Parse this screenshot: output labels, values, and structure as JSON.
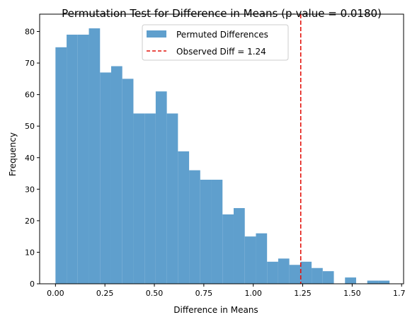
{
  "chart_data": {
    "type": "histogram",
    "title": "Permutation Test for Difference in Means (p-value = 0.0180)",
    "xlabel": "Difference in Means",
    "ylabel": "Frequency",
    "xlim": [
      -0.08,
      1.76
    ],
    "ylim": [
      0,
      85.5
    ],
    "x_ticks": [
      0.0,
      0.25,
      0.5,
      0.75,
      1.0,
      1.25,
      1.5,
      1.75
    ],
    "x_tick_labels": [
      "0.00",
      "0.25",
      "0.50",
      "0.75",
      "1.00",
      "1.25",
      "1.50",
      "1.75"
    ],
    "y_ticks": [
      0,
      10,
      20,
      30,
      40,
      50,
      60,
      70,
      80
    ],
    "y_tick_labels": [
      "0",
      "10",
      "20",
      "30",
      "40",
      "50",
      "60",
      "70",
      "80"
    ],
    "bin_start": 0.0,
    "bin_width": 0.0563,
    "counts": [
      75,
      79,
      79,
      81,
      67,
      69,
      65,
      54,
      54,
      61,
      54,
      42,
      36,
      33,
      33,
      22,
      24,
      15,
      16,
      7,
      8,
      6,
      7,
      5,
      4,
      0,
      2,
      0,
      1,
      1
    ],
    "bar_color": "#5f9fcd",
    "grid": false,
    "observed": {
      "label": "Observed Diff = 1.24",
      "value": 1.24,
      "color": "#e3120b",
      "style": "dashed"
    },
    "legend": {
      "position": "top-center",
      "entries": [
        "Permuted Differences",
        "Observed Diff = 1.24"
      ]
    }
  }
}
